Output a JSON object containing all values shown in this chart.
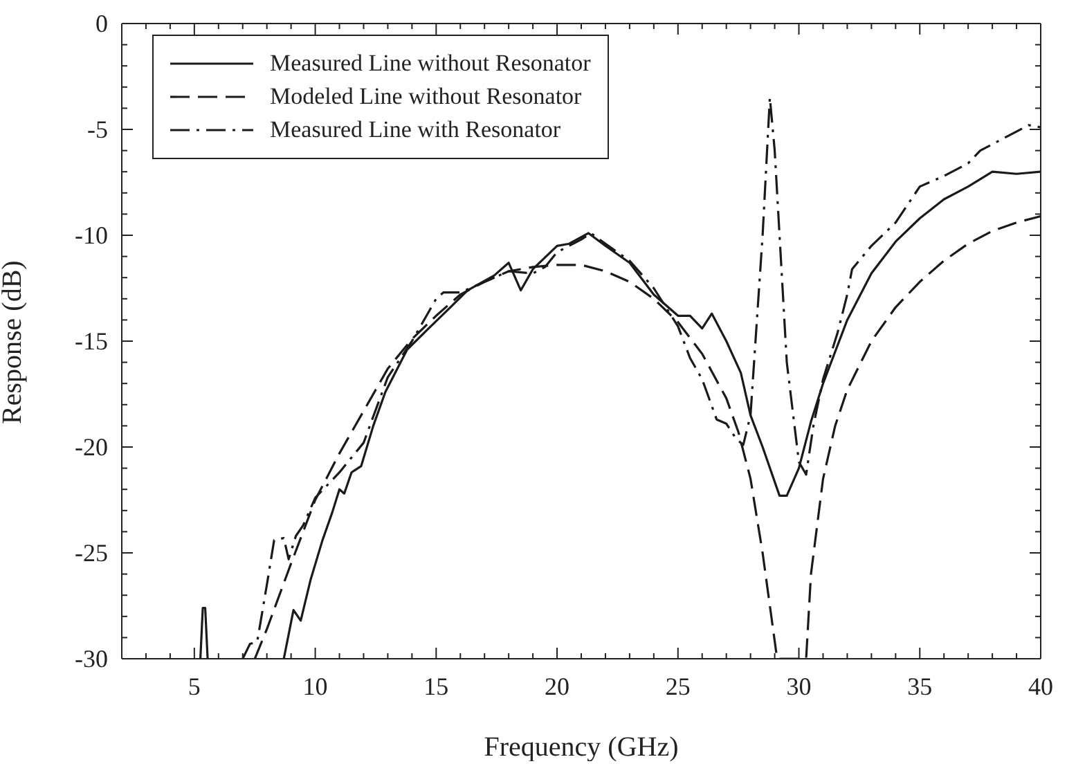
{
  "chart_data": {
    "type": "line",
    "xlabel": "Frequency (GHz)",
    "ylabel": "Response (dB)",
    "xlim": [
      2,
      40
    ],
    "ylim": [
      -30,
      0
    ],
    "xticks": [
      {
        "value": 3,
        "label": null
      },
      {
        "value": 4,
        "label": null
      },
      5,
      {
        "value": 6,
        "label": null
      },
      {
        "value": 7,
        "label": null
      },
      {
        "value": 8,
        "label": null
      },
      {
        "value": 9,
        "label": null
      },
      10,
      {
        "value": 11,
        "label": null
      },
      {
        "value": 12,
        "label": null
      },
      {
        "value": 13,
        "label": null
      },
      {
        "value": 14,
        "label": null
      },
      15,
      {
        "value": 16,
        "label": null
      },
      {
        "value": 17,
        "label": null
      },
      {
        "value": 18,
        "label": null
      },
      {
        "value": 19,
        "label": null
      },
      20,
      {
        "value": 21,
        "label": null
      },
      {
        "value": 22,
        "label": null
      },
      {
        "value": 23,
        "label": null
      },
      {
        "value": 24,
        "label": null
      },
      25,
      {
        "value": 26,
        "label": null
      },
      {
        "value": 27,
        "label": null
      },
      {
        "value": 28,
        "label": null
      },
      {
        "value": 29,
        "label": null
      },
      30,
      {
        "value": 31,
        "label": null
      },
      {
        "value": 32,
        "label": null
      },
      {
        "value": 33,
        "label": null
      },
      {
        "value": 34,
        "label": null
      },
      35,
      {
        "value": 36,
        "label": null
      },
      {
        "value": 37,
        "label": null
      },
      {
        "value": 38,
        "label": null
      },
      {
        "value": 39,
        "label": null
      },
      40
    ],
    "yticks": [
      -30,
      {
        "value": -29,
        "label": null
      },
      {
        "value": -28,
        "label": null
      },
      {
        "value": -27,
        "label": null
      },
      {
        "value": -26,
        "label": null
      },
      -25,
      {
        "value": -24,
        "label": null
      },
      {
        "value": -23,
        "label": null
      },
      {
        "value": -22,
        "label": null
      },
      {
        "value": -21,
        "label": null
      },
      -20,
      {
        "value": -19,
        "label": null
      },
      {
        "value": -18,
        "label": null
      },
      {
        "value": -17,
        "label": null
      },
      {
        "value": -16,
        "label": null
      },
      -15,
      {
        "value": -14,
        "label": null
      },
      {
        "value": -13,
        "label": null
      },
      {
        "value": -12,
        "label": null
      },
      {
        "value": -11,
        "label": null
      },
      -10,
      {
        "value": -9,
        "label": null
      },
      {
        "value": -8,
        "label": null
      },
      {
        "value": -7,
        "label": null
      },
      {
        "value": -6,
        "label": null
      },
      -5,
      {
        "value": -4,
        "label": null
      },
      {
        "value": -3,
        "label": null
      },
      {
        "value": -2,
        "label": null
      },
      {
        "value": -1,
        "label": null
      },
      0
    ],
    "legend": "top left",
    "marker": "none",
    "series": [
      {
        "name": "Measured Line without Resonator",
        "color": "#1a1a1a",
        "line_style": "solid",
        "x": [
          5.25,
          5.35,
          5.45,
          5.55,
          7,
          8.7,
          9.1,
          9.4,
          9.8,
          10.3,
          10.7,
          11,
          11.2,
          11.5,
          11.9,
          12.4,
          12.9,
          13.8,
          14.6,
          15.5,
          16.3,
          17.4,
          18,
          18.5,
          19,
          20,
          20.5,
          21.3,
          22,
          23,
          24,
          25,
          25.5,
          26,
          26.4,
          27,
          27.6,
          28,
          28.5,
          29.2,
          29.5,
          30,
          30.5,
          31,
          32,
          33,
          34,
          35,
          36,
          37,
          38,
          39,
          40
        ],
        "values": [
          -30,
          -27.6,
          -27.6,
          -30,
          null,
          -30,
          -27.7,
          -28.2,
          -26.3,
          -24.4,
          -23.1,
          -22,
          -22.2,
          -21.2,
          -20.9,
          -19,
          -17.4,
          -15.4,
          -14.5,
          -13.5,
          -12.6,
          -11.9,
          -11.3,
          -12.6,
          -11.6,
          -10.5,
          -10.4,
          -9.9,
          -10.5,
          -11.3,
          -12.8,
          -13.8,
          -13.8,
          -14.4,
          -13.7,
          -15,
          -16.5,
          -18.5,
          -20,
          -22.3,
          -22.3,
          -21,
          -18.8,
          -17,
          -14,
          -11.8,
          -10.3,
          -9.2,
          -8.3,
          -7.7,
          -7,
          -7.1,
          -7
        ]
      },
      {
        "name": "Modeled Line without Resonator",
        "color": "#1a1a1a",
        "line_style": "dashed",
        "x": [
          7.5,
          8,
          9,
          10,
          11,
          12,
          13,
          14,
          15,
          16,
          17,
          18,
          19,
          20,
          21,
          22,
          23,
          24,
          25,
          26,
          27,
          27.5,
          28,
          28.5,
          29.1,
          30.3,
          30.5,
          31,
          31.5,
          32,
          33,
          34,
          35,
          36,
          37,
          38,
          39,
          40
        ],
        "values": [
          -30,
          -28.6,
          -25.5,
          -22.5,
          -20.3,
          -18.3,
          -16.3,
          -14.9,
          -13.8,
          -12.8,
          -12.2,
          -11.7,
          -11.5,
          -11.4,
          -11.4,
          -11.7,
          -12.2,
          -13,
          -14.1,
          -15.6,
          -17.7,
          -19.3,
          -21.5,
          -25,
          -30,
          -30,
          -26,
          -21.5,
          -19,
          -17.3,
          -15,
          -13.4,
          -12.2,
          -11.2,
          -10.4,
          -9.8,
          -9.4,
          -9.1
        ]
      },
      {
        "name": "Measured Line with Resonator",
        "color": "#1a1a1a",
        "line_style": "dashdot",
        "x": [
          7,
          7.3,
          7.6,
          8,
          8.3,
          8.7,
          8.9,
          9.2,
          9.5,
          10,
          11,
          12,
          13,
          14,
          15,
          15.3,
          16,
          17,
          18,
          19,
          19.5,
          20,
          21,
          21.4,
          22,
          23,
          24,
          25,
          25.5,
          26,
          26.6,
          27,
          27.4,
          27.7,
          28,
          28.5,
          28.8,
          29,
          29.5,
          30,
          30.3,
          30.6,
          31,
          31.6,
          32,
          32.2,
          33,
          34,
          35,
          36,
          37,
          37.5,
          38,
          39,
          39.5,
          40
        ],
        "values": [
          -30,
          -29.3,
          -29.2,
          -26.5,
          -24.4,
          -24.3,
          -25.3,
          -24.2,
          -23.7,
          -22.4,
          -21.2,
          -19.8,
          -16.7,
          -15,
          -13,
          -12.7,
          -12.7,
          -12.2,
          -11.7,
          -11.8,
          -11.5,
          -10.8,
          -10.2,
          -9.9,
          -10.4,
          -11.2,
          -12.5,
          -14.3,
          -15.8,
          -16.8,
          -18.7,
          -18.9,
          -19.6,
          -19.9,
          -18.5,
          -10,
          -3.5,
          -6,
          -16,
          -20.7,
          -21.3,
          -19,
          -16.8,
          -14.6,
          -12.8,
          -11.6,
          -10.5,
          -9.4,
          -7.7,
          -7.2,
          -6.6,
          -6,
          -5.7,
          -5.1,
          -4.8,
          -4.9
        ]
      }
    ]
  }
}
